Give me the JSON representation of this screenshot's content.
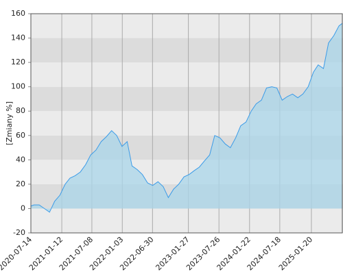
{
  "chart_data": {
    "type": "area",
    "y_label": "[Zmiany %]",
    "x": [
      "2020-07-14",
      "2020-08-01",
      "2020-09-01",
      "2020-10-01",
      "2020-11-01",
      "2020-12-01",
      "2021-01-01",
      "2021-02-01",
      "2021-03-01",
      "2021-04-01",
      "2021-05-01",
      "2021-06-01",
      "2021-07-01",
      "2021-08-01",
      "2021-09-01",
      "2021-10-01",
      "2021-11-01",
      "2021-12-01",
      "2022-01-01",
      "2022-02-01",
      "2022-03-01",
      "2022-04-01",
      "2022-05-01",
      "2022-06-01",
      "2022-07-01",
      "2022-08-01",
      "2022-09-01",
      "2022-10-01",
      "2022-11-01",
      "2022-12-01",
      "2023-01-01",
      "2023-02-01",
      "2023-03-01",
      "2023-04-01",
      "2023-05-01",
      "2023-06-01",
      "2023-07-01",
      "2023-08-01",
      "2023-09-01",
      "2023-10-01",
      "2023-11-01",
      "2023-12-01",
      "2024-01-01",
      "2024-02-01",
      "2024-03-01",
      "2024-04-01",
      "2024-05-01",
      "2024-06-01",
      "2024-07-01",
      "2024-08-01",
      "2024-09-01",
      "2024-10-01",
      "2024-11-01",
      "2024-12-01",
      "2025-01-01",
      "2025-02-01",
      "2025-03-01",
      "2025-04-01",
      "2025-05-01",
      "2025-06-01",
      "2025-07-01",
      "2025-07-20"
    ],
    "values": [
      2,
      3,
      3,
      0,
      -3,
      6,
      11,
      20,
      25,
      27,
      30,
      36,
      44,
      48,
      55,
      59,
      64,
      60,
      51,
      55,
      35,
      32,
      28,
      21,
      19,
      22,
      18,
      9,
      16,
      20,
      26,
      28,
      31,
      34,
      39,
      44,
      60,
      58,
      53,
      50,
      58,
      68,
      71,
      80,
      86,
      89,
      99,
      100,
      99,
      89,
      92,
      94,
      91,
      94,
      100,
      112,
      118,
      115,
      136,
      142,
      150,
      152
    ],
    "line_color": "#3a9be8",
    "fill_color": "#a9d6ea",
    "xlim": [
      "2020-07-14",
      "2025-07-25"
    ],
    "xticks": [
      "2020-07-14",
      "2021-01-12",
      "2021-07-08",
      "2022-01-03",
      "2022-06-30",
      "2023-01-27",
      "2023-07-26",
      "2024-01-22",
      "2024-07-18",
      "2025-01-20"
    ],
    "ylim": [
      -20,
      160
    ],
    "yticks": [
      -20,
      0,
      20,
      40,
      60,
      80,
      100,
      120,
      140,
      160
    ],
    "grid": true
  }
}
